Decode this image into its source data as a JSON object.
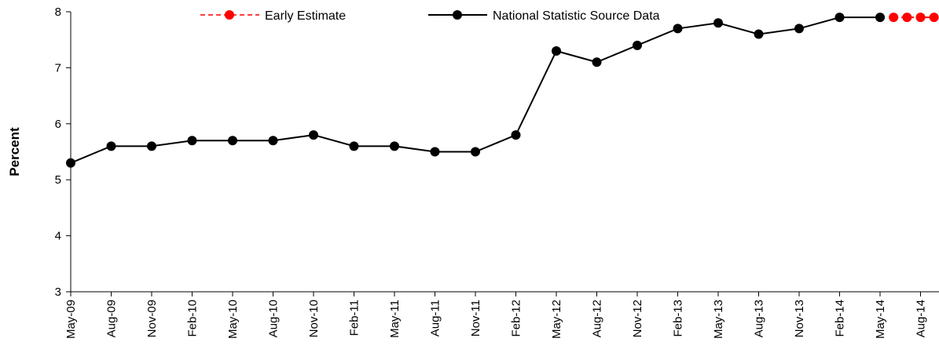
{
  "chart_data": {
    "type": "line",
    "title": "",
    "xlabel": "",
    "ylabel": "Percent",
    "ylim": [
      3,
      8
    ],
    "yticks": [
      "3",
      "4",
      "5",
      "6",
      "7",
      "8"
    ],
    "categories": [
      "May-09",
      "Aug-09",
      "Nov-09",
      "Feb-10",
      "May-10",
      "Aug-10",
      "Nov-10",
      "Feb-11",
      "May-11",
      "Aug-11",
      "Nov-11",
      "Feb-12",
      "May-12",
      "Aug-12",
      "Nov-12",
      "Feb-13",
      "May-13",
      "Aug-13",
      "Nov-13",
      "Feb-14",
      "May-14",
      "Aug-14"
    ],
    "series": [
      {
        "name": "National Statistic Source Data",
        "color": "#000000",
        "style": "solid",
        "x": [
          "May-09",
          "Aug-09",
          "Nov-09",
          "Feb-10",
          "May-10",
          "Aug-10",
          "Nov-10",
          "Feb-11",
          "May-11",
          "Aug-11",
          "Nov-11",
          "Feb-12",
          "May-12",
          "Aug-12",
          "Nov-12",
          "Feb-13",
          "May-13",
          "Aug-13",
          "Nov-13",
          "Feb-14",
          "May-14"
        ],
        "values": [
          5.3,
          5.6,
          5.6,
          5.7,
          5.7,
          5.7,
          5.8,
          5.6,
          5.6,
          5.5,
          5.5,
          5.8,
          7.3,
          7.1,
          7.4,
          7.7,
          7.8,
          7.6,
          7.7,
          7.9,
          7.9
        ]
      },
      {
        "name": "Early Estimate",
        "color": "#ff0000",
        "style": "dashed",
        "x": [
          "Jun-14",
          "Jul-14",
          "Aug-14",
          "Sep-14"
        ],
        "values": [
          7.9,
          7.9,
          7.9,
          7.9
        ]
      }
    ],
    "legend": {
      "position": "top"
    }
  }
}
